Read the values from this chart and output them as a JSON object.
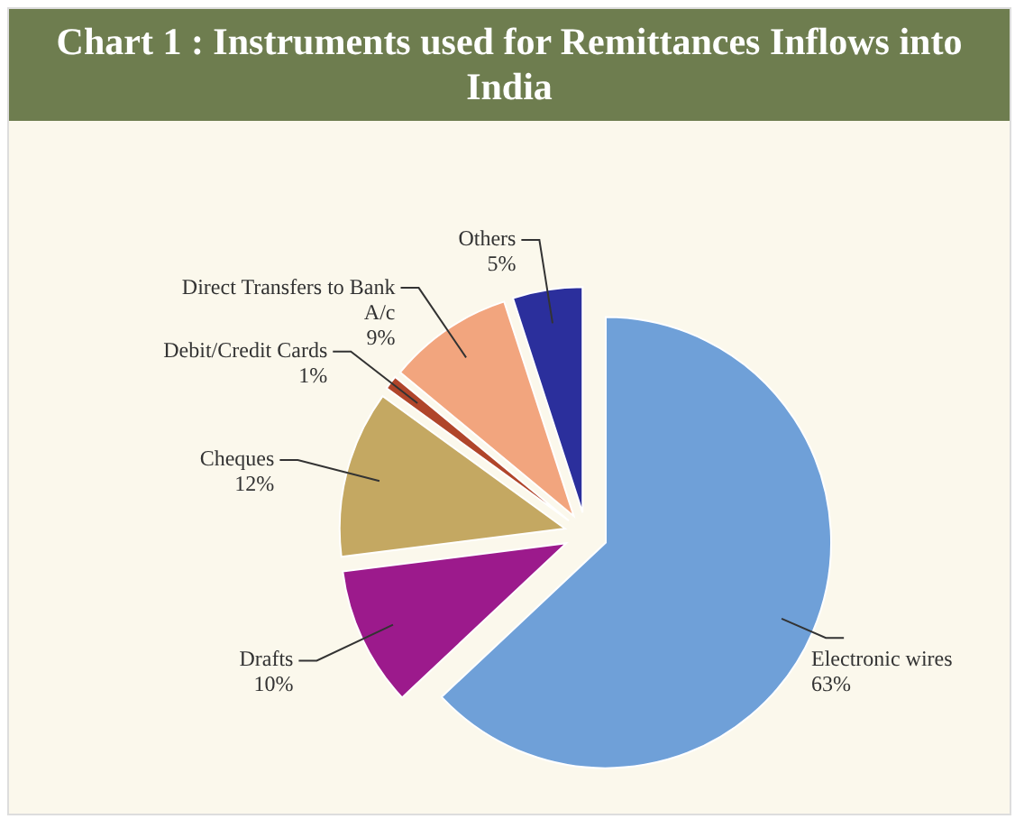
{
  "chart_data": {
    "type": "pie",
    "title": "Chart 1 : Instruments used for Remittances Inflows into India",
    "categories": [
      "Electronic wires",
      "Drafts",
      "Cheques",
      "Debit/Credit Cards",
      "Direct Transfers to Bank A/c",
      "Others"
    ],
    "values": [
      63,
      10,
      12,
      1,
      9,
      5
    ],
    "value_labels": [
      "63%",
      "10%",
      "12%",
      "1%",
      "9%",
      "5%"
    ],
    "colors": [
      "#6fa0d8",
      "#9c1a8c",
      "#c4a862",
      "#b0452a",
      "#f2a57e",
      "#2b2f9c"
    ]
  }
}
